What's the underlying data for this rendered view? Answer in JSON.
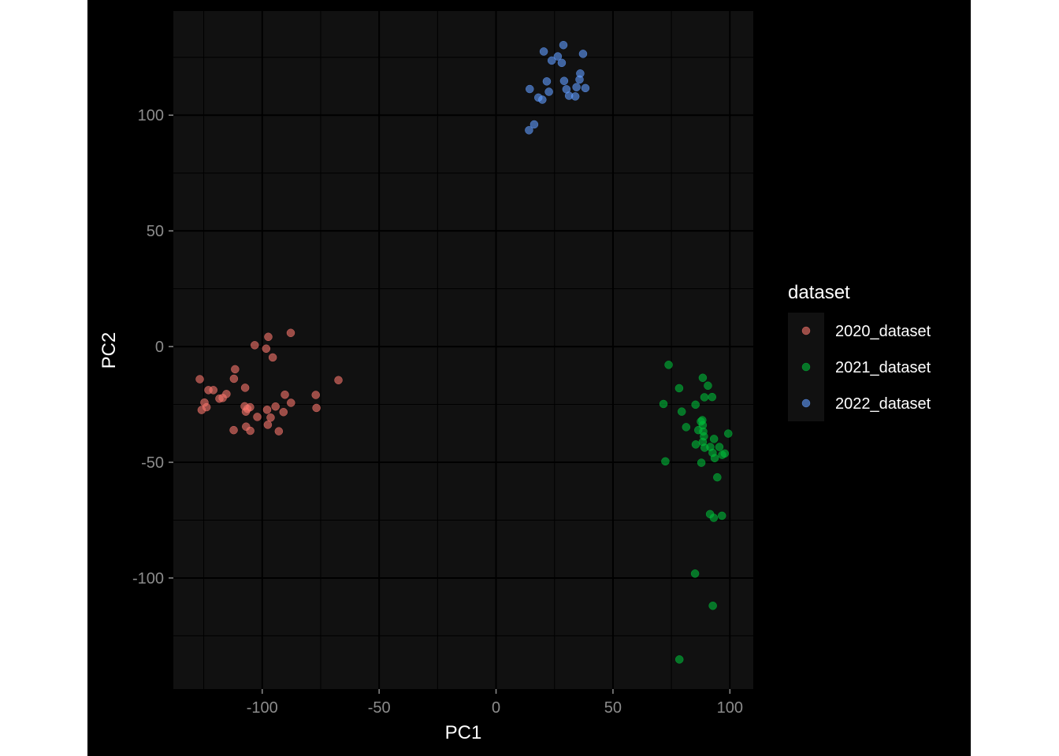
{
  "chart_data": {
    "type": "scatter",
    "xlabel": "PC1",
    "ylabel": "PC2",
    "xlim": [
      -138,
      110
    ],
    "ylim": [
      -148,
      145
    ],
    "x_ticks": [
      -100,
      -50,
      0,
      50,
      100
    ],
    "y_ticks": [
      -100,
      -50,
      0,
      50,
      100
    ],
    "x_tick_labels": [
      "-100",
      "-50",
      "0",
      "50",
      "100"
    ],
    "y_tick_labels": [
      "-100",
      "-50",
      "0",
      "50",
      "100"
    ],
    "grid": true,
    "legend": {
      "title": "dataset",
      "position": "right"
    },
    "series": [
      {
        "name": "2020_dataset",
        "color": "#F8766D",
        "points": [
          [
            -126.7,
            -14.1
          ],
          [
            -125.9,
            -27.4
          ],
          [
            -124.7,
            -24.2
          ],
          [
            -123.8,
            -26.2
          ],
          [
            -123.0,
            -18.8
          ],
          [
            -120.9,
            -18.8
          ],
          [
            -118.3,
            -22.5
          ],
          [
            -116.9,
            -22.2
          ],
          [
            -115.3,
            -20.5
          ],
          [
            -112.2,
            -36.1
          ],
          [
            -111.6,
            -9.8
          ],
          [
            -112.1,
            -13.9
          ],
          [
            -107.3,
            -17.8
          ],
          [
            -107.5,
            -25.8
          ],
          [
            -107.0,
            -28.1
          ],
          [
            -106.3,
            -26.9
          ],
          [
            -105.2,
            -26.2
          ],
          [
            -106.9,
            -34.6
          ],
          [
            -105.1,
            -36.4
          ],
          [
            -103.2,
            0.6
          ],
          [
            -102.1,
            -30.4
          ],
          [
            -98.3,
            -0.9
          ],
          [
            -97.4,
            4.2
          ],
          [
            -97.9,
            -27.3
          ],
          [
            -97.6,
            -33.8
          ],
          [
            -96.4,
            -30.7
          ],
          [
            -95.5,
            -4.7
          ],
          [
            -94.3,
            -25.9
          ],
          [
            -92.9,
            -36.6
          ],
          [
            -90.9,
            -28.3
          ],
          [
            -90.3,
            -20.8
          ],
          [
            -87.8,
            5.9
          ],
          [
            -87.7,
            -24.3
          ],
          [
            -77.1,
            -20.9
          ],
          [
            -76.8,
            -26.5
          ],
          [
            -67.4,
            -14.5
          ]
        ]
      },
      {
        "name": "2021_dataset",
        "color": "#00BA38",
        "points": [
          [
            71.6,
            -24.8
          ],
          [
            73.8,
            -7.9
          ],
          [
            72.4,
            -49.6
          ],
          [
            78.3,
            -18.0
          ],
          [
            79.4,
            -28.1
          ],
          [
            81.3,
            -34.8
          ],
          [
            85.3,
            -25.1
          ],
          [
            85.4,
            -42.3
          ],
          [
            86.5,
            -36.1
          ],
          [
            87.6,
            -32.4
          ],
          [
            88.2,
            -31.8
          ],
          [
            88.4,
            -34.0
          ],
          [
            88.6,
            -36.7
          ],
          [
            88.9,
            -38.8
          ],
          [
            88.4,
            -41.2
          ],
          [
            89.2,
            -43.7
          ],
          [
            87.8,
            -50.2
          ],
          [
            88.4,
            -13.5
          ],
          [
            89.1,
            -21.9
          ],
          [
            90.6,
            -16.9
          ],
          [
            91.6,
            -43.4
          ],
          [
            92.4,
            -21.8
          ],
          [
            92.6,
            -45.9
          ],
          [
            93.2,
            -39.9
          ],
          [
            93.5,
            -48.2
          ],
          [
            94.6,
            -56.5
          ],
          [
            95.5,
            -43.4
          ],
          [
            96.7,
            -46.8
          ],
          [
            97.8,
            -46.2
          ],
          [
            99.3,
            -37.6
          ],
          [
            91.5,
            -72.4
          ],
          [
            93.1,
            -74.0
          ],
          [
            96.6,
            -73.1
          ],
          [
            85.1,
            -98.1
          ],
          [
            92.7,
            -112.0
          ],
          [
            78.4,
            -135.2
          ]
        ]
      },
      {
        "name": "2022_dataset",
        "color": "#619CFF",
        "points": [
          [
            20.4,
            127.5
          ],
          [
            26.4,
            125.4
          ],
          [
            28.8,
            130.3
          ],
          [
            37.2,
            126.5
          ],
          [
            23.8,
            123.6
          ],
          [
            28.1,
            122.6
          ],
          [
            21.7,
            114.6
          ],
          [
            29.1,
            114.8
          ],
          [
            30.1,
            111.2
          ],
          [
            34.4,
            112.1
          ],
          [
            35.7,
            115.4
          ],
          [
            36.0,
            118.0
          ],
          [
            38.2,
            111.7
          ],
          [
            14.4,
            111.3
          ],
          [
            22.6,
            110.1
          ],
          [
            31.2,
            108.4
          ],
          [
            33.9,
            108.1
          ],
          [
            18.1,
            107.6
          ],
          [
            19.8,
            106.7
          ],
          [
            16.3,
            96.0
          ],
          [
            14.1,
            93.5
          ]
        ]
      }
    ]
  }
}
